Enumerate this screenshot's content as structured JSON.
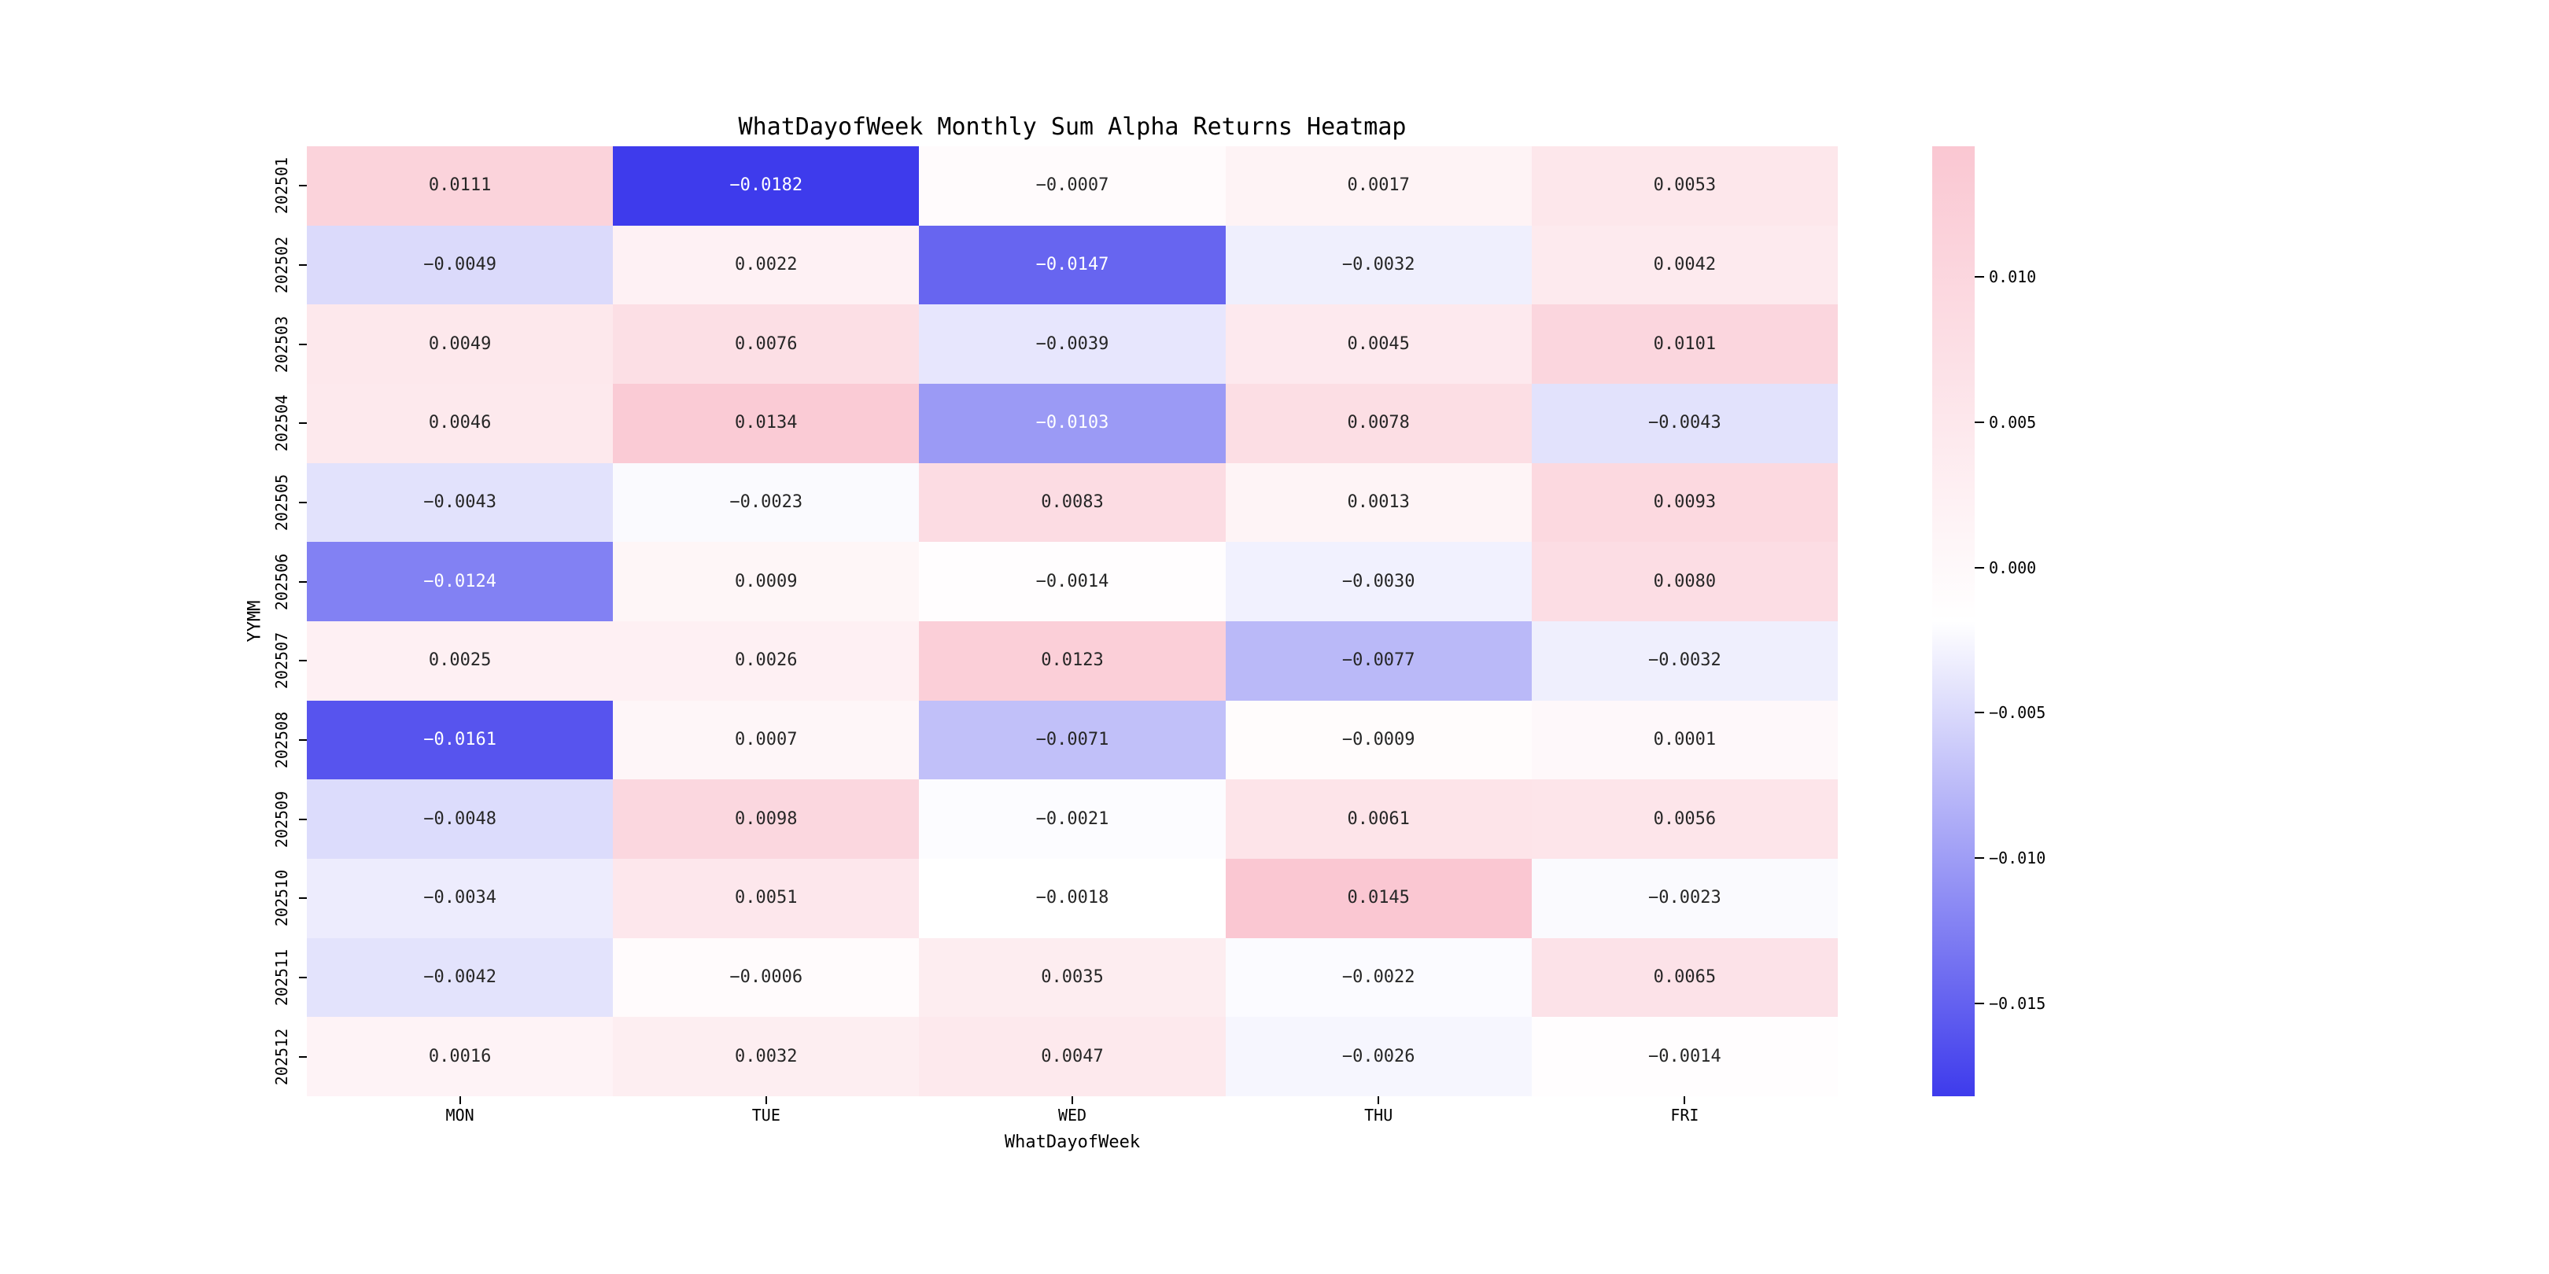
{
  "chart_data": {
    "type": "heatmap",
    "title": "WhatDayofWeek Monthly Sum Alpha Returns Heatmap",
    "xlabel": "WhatDayofWeek",
    "ylabel": "YYMM",
    "columns": [
      "MON",
      "TUE",
      "WED",
      "THU",
      "FRI"
    ],
    "rows": [
      "202501",
      "202502",
      "202503",
      "202504",
      "202505",
      "202506",
      "202507",
      "202508",
      "202509",
      "202510",
      "202511",
      "202512"
    ],
    "values": [
      [
        0.0111,
        -0.0182,
        -0.0007,
        0.0017,
        0.0053
      ],
      [
        -0.0049,
        0.0022,
        -0.0147,
        -0.0032,
        0.0042
      ],
      [
        0.0049,
        0.0076,
        -0.0039,
        0.0045,
        0.0101
      ],
      [
        0.0046,
        0.0134,
        -0.0103,
        0.0078,
        -0.0043
      ],
      [
        -0.0043,
        -0.0023,
        0.0083,
        0.0013,
        0.0093
      ],
      [
        -0.0124,
        0.0009,
        -0.0014,
        -0.003,
        0.008
      ],
      [
        0.0025,
        0.0026,
        0.0123,
        -0.0077,
        -0.0032
      ],
      [
        -0.0161,
        0.0007,
        -0.0071,
        -0.0009,
        0.0001
      ],
      [
        -0.0048,
        0.0098,
        -0.0021,
        0.0061,
        0.0056
      ],
      [
        -0.0034,
        0.0051,
        -0.0018,
        0.0145,
        -0.0023
      ],
      [
        -0.0042,
        -0.0006,
        0.0035,
        -0.0022,
        0.0065
      ],
      [
        0.0016,
        0.0032,
        0.0047,
        -0.0026,
        -0.0014
      ]
    ],
    "vmin": -0.0182,
    "vmax": 0.0145,
    "colorbar_ticks": [
      0.01,
      0.005,
      0.0,
      -0.005,
      -0.01,
      -0.015
    ],
    "colors": {
      "negative_end": "#3E3BEC",
      "midpoint": "#FFFFFF",
      "positive_end": "#FAC7D2",
      "annot_dark": "#262626",
      "annot_light": "#FFFFFF"
    },
    "legend_position": "right",
    "grid": false
  }
}
